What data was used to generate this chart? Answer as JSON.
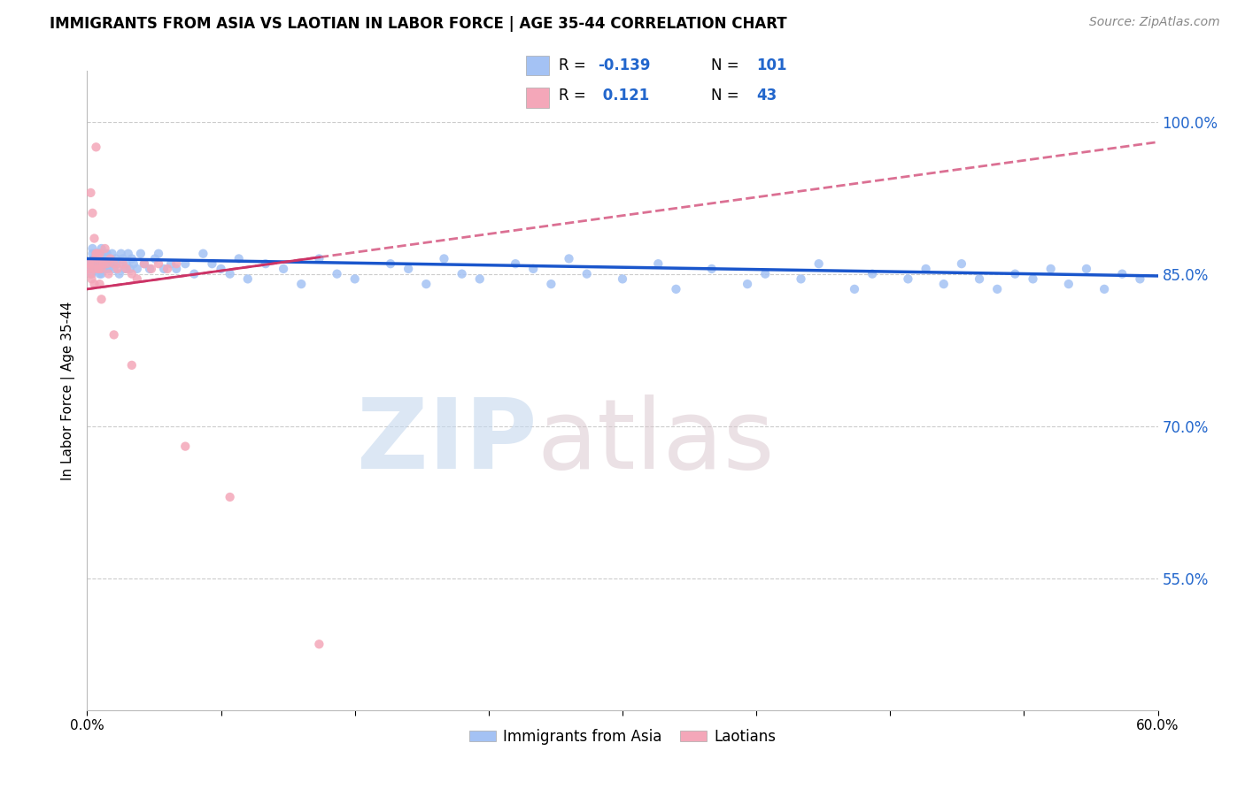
{
  "title": "IMMIGRANTS FROM ASIA VS LAOTIAN IN LABOR FORCE | AGE 35-44 CORRELATION CHART",
  "source": "Source: ZipAtlas.com",
  "ylabel": "In Labor Force | Age 35-44",
  "right_yticks": [
    55.0,
    70.0,
    85.0,
    100.0
  ],
  "legend_blue_R": "-0.139",
  "legend_blue_N": "101",
  "legend_pink_R": "0.121",
  "legend_pink_N": "43",
  "blue_color": "#a4c2f4",
  "pink_color": "#f4a7b9",
  "blue_line_color": "#1a56cc",
  "pink_line_color": "#cc3366",
  "title_fontsize": 12,
  "legend_label_blue": "Immigrants from Asia",
  "legend_label_pink": "Laotians",
  "xmin": 0.0,
  "xmax": 60.0,
  "ymin": 42.0,
  "ymax": 105.0,
  "blue_x": [
    0.15,
    0.2,
    0.25,
    0.3,
    0.35,
    0.4,
    0.45,
    0.5,
    0.55,
    0.6,
    0.65,
    0.7,
    0.75,
    0.8,
    0.85,
    0.9,
    0.95,
    1.0,
    1.05,
    1.1,
    1.15,
    1.2,
    1.3,
    1.4,
    1.5,
    1.6,
    1.7,
    1.8,
    1.9,
    2.0,
    2.1,
    2.2,
    2.3,
    2.4,
    2.5,
    2.6,
    2.8,
    3.0,
    3.2,
    3.5,
    3.8,
    4.0,
    4.3,
    4.7,
    5.0,
    5.5,
    6.0,
    6.5,
    7.0,
    7.5,
    8.0,
    8.5,
    9.0,
    10.0,
    11.0,
    12.0,
    13.0,
    14.0,
    15.0,
    17.0,
    18.0,
    19.0,
    20.0,
    21.0,
    22.0,
    24.0,
    25.0,
    26.0,
    27.0,
    28.0,
    30.0,
    32.0,
    33.0,
    35.0,
    37.0,
    38.0,
    40.0,
    41.0,
    43.0,
    44.0,
    46.0,
    47.0,
    48.0,
    49.0,
    50.0,
    51.0,
    52.0,
    53.0,
    54.0,
    55.0,
    56.0,
    57.0,
    58.0,
    59.0,
    0.3,
    0.4,
    0.5,
    0.6,
    0.7,
    0.8,
    1.0
  ],
  "blue_y": [
    85.5,
    86.0,
    85.0,
    87.5,
    86.5,
    85.5,
    87.0,
    86.0,
    85.5,
    86.5,
    87.0,
    85.0,
    86.0,
    87.5,
    86.0,
    85.5,
    87.0,
    86.5,
    85.5,
    87.0,
    86.0,
    85.5,
    86.0,
    87.0,
    85.5,
    86.5,
    86.0,
    85.0,
    87.0,
    86.5,
    85.5,
    86.0,
    87.0,
    85.5,
    86.5,
    86.0,
    85.5,
    87.0,
    86.0,
    85.5,
    86.5,
    87.0,
    85.5,
    86.0,
    85.5,
    86.0,
    85.0,
    87.0,
    86.0,
    85.5,
    85.0,
    86.5,
    84.5,
    86.0,
    85.5,
    84.0,
    86.5,
    85.0,
    84.5,
    86.0,
    85.5,
    84.0,
    86.5,
    85.0,
    84.5,
    86.0,
    85.5,
    84.0,
    86.5,
    85.0,
    84.5,
    86.0,
    83.5,
    85.5,
    84.0,
    85.0,
    84.5,
    86.0,
    83.5,
    85.0,
    84.5,
    85.5,
    84.0,
    86.0,
    84.5,
    83.5,
    85.0,
    84.5,
    85.5,
    84.0,
    85.5,
    83.5,
    85.0,
    84.5,
    87.0,
    86.5,
    85.5,
    87.0,
    86.5,
    85.0,
    86.0
  ],
  "pink_x": [
    0.1,
    0.15,
    0.2,
    0.25,
    0.3,
    0.35,
    0.4,
    0.45,
    0.5,
    0.55,
    0.6,
    0.65,
    0.7,
    0.75,
    0.8,
    0.9,
    1.0,
    1.1,
    1.2,
    1.3,
    1.5,
    1.7,
    2.0,
    2.2,
    2.5,
    2.8,
    3.2,
    3.6,
    4.0,
    4.5,
    5.0,
    0.2,
    0.3,
    0.4,
    0.5,
    0.6,
    0.7,
    0.8,
    1.5,
    2.5,
    5.5,
    8.0,
    13.0
  ],
  "pink_y": [
    85.5,
    86.0,
    85.0,
    84.5,
    86.0,
    85.5,
    84.0,
    86.5,
    97.5,
    87.0,
    86.5,
    85.5,
    87.0,
    86.0,
    85.5,
    86.0,
    87.5,
    86.0,
    85.0,
    86.5,
    86.0,
    85.5,
    86.0,
    85.5,
    85.0,
    84.5,
    86.0,
    85.5,
    86.0,
    85.5,
    86.0,
    93.0,
    91.0,
    88.5,
    87.0,
    85.5,
    84.0,
    82.5,
    79.0,
    76.0,
    68.0,
    63.0,
    48.5
  ],
  "blue_trend_x0": 0.0,
  "blue_trend_x1": 60.0,
  "blue_trend_y0": 86.5,
  "blue_trend_y1": 84.8,
  "pink_trend_x0": 0.0,
  "pink_trend_x1": 60.0,
  "pink_trend_y0": 83.5,
  "pink_trend_y1": 98.0
}
